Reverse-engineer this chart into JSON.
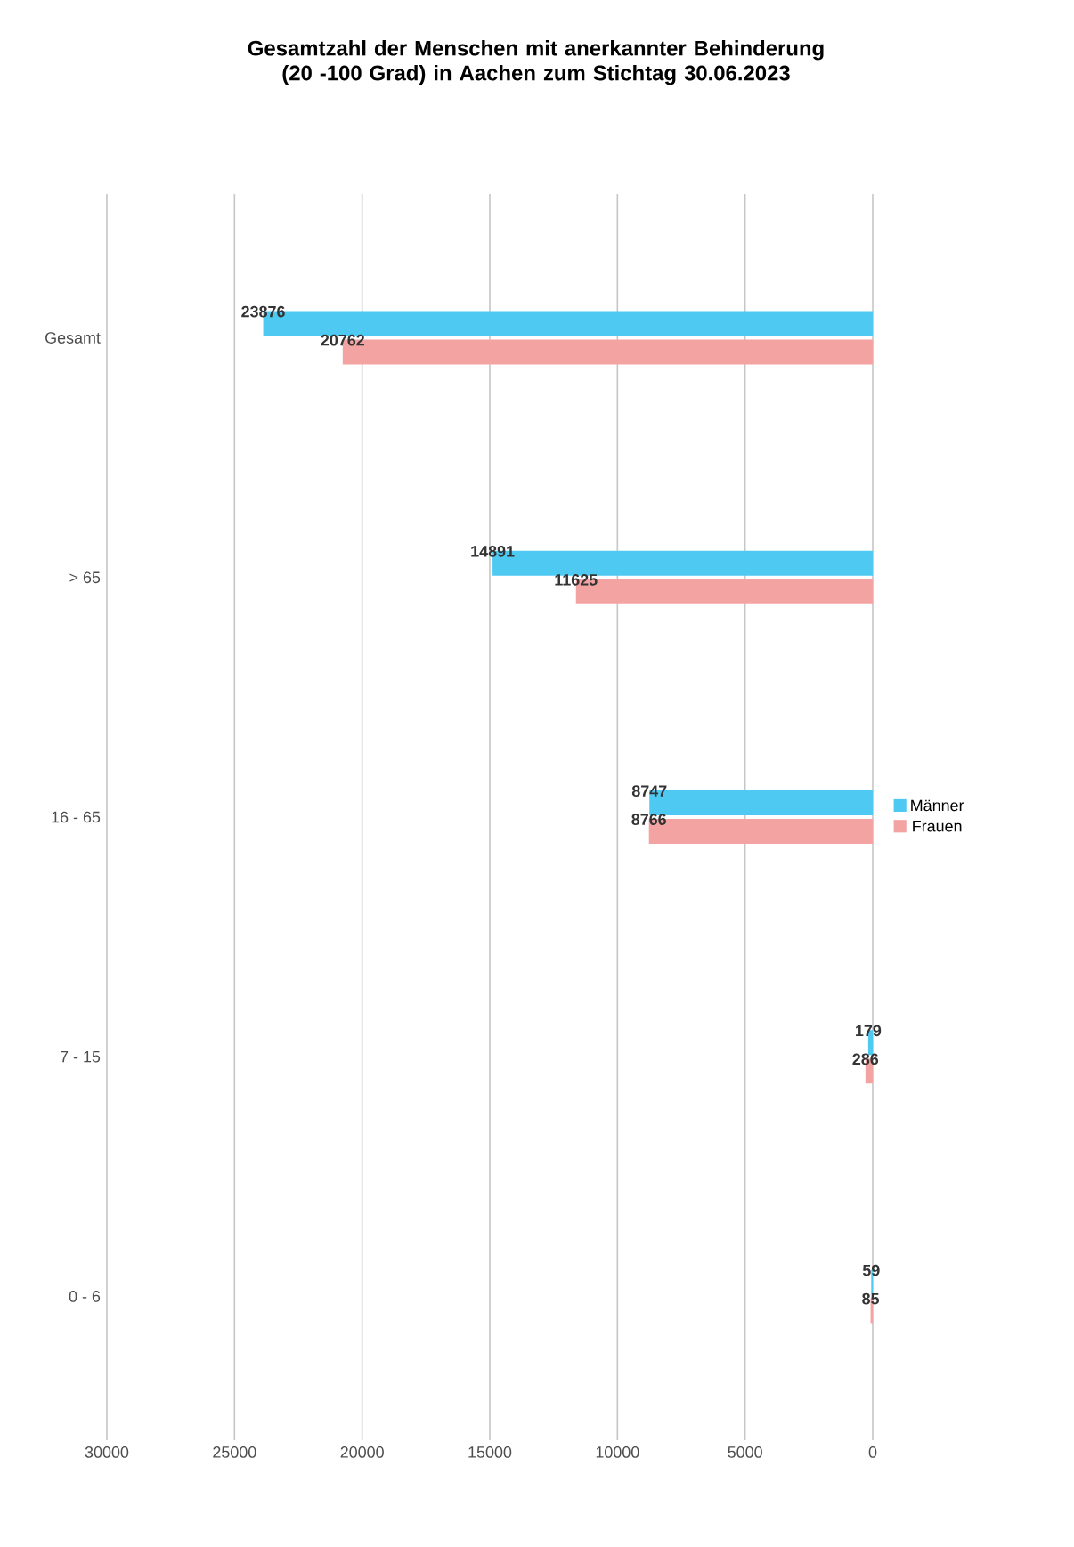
{
  "chart_data": {
    "type": "bar",
    "orientation": "horizontal",
    "title": "Gesamtzahl der Menschen mit anerkannter Behinderung (20 -100 Grad) in Aachen zum Stichtag 30.06.2023",
    "categories": [
      "Gesamt",
      "> 65",
      "16 - 65",
      "7 - 15",
      "0 - 6"
    ],
    "series": [
      {
        "name": "Männer",
        "color": "#4dc9f2",
        "values": [
          23876,
          14891,
          8747,
          179,
          59
        ]
      },
      {
        "name": "Frauen",
        "color": "#f4a3a3",
        "values": [
          20762,
          11625,
          8766,
          286,
          85
        ]
      }
    ],
    "xlim": [
      30000,
      0
    ],
    "xticks": [
      0,
      5000,
      10000,
      15000,
      20000,
      25000,
      30000
    ],
    "grid": "x",
    "legend": "right",
    "data_labels": true
  }
}
